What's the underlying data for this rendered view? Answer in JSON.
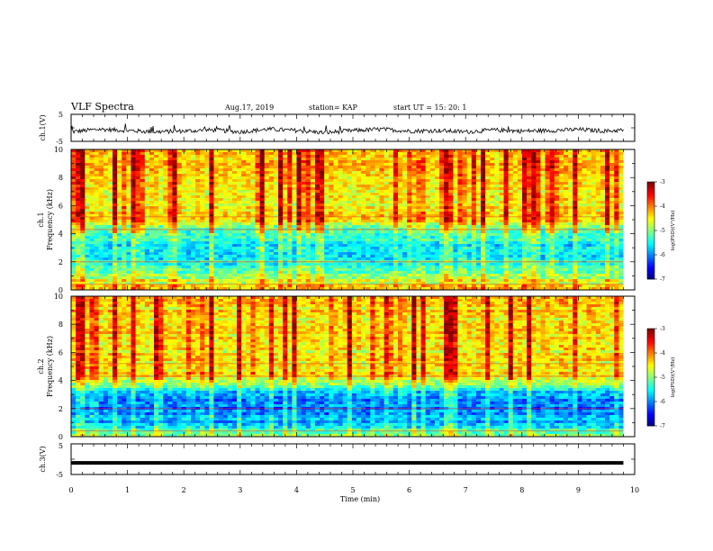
{
  "header": {
    "title": "VLF Spectra",
    "date": "Aug.17, 2019",
    "station": "station= KAP",
    "start": "start  UT =   15: 20: 1"
  },
  "chart_data": [
    {
      "type": "line",
      "ylabel": "ch.1(V)",
      "xlim": [
        0,
        10
      ],
      "ylim": [
        -5,
        5
      ],
      "yticks": [
        "5",
        "-5"
      ],
      "description_series": "noisy waveform around -1 V",
      "x": [
        0,
        0.5,
        1,
        1.5,
        2,
        2.5,
        3,
        3.5,
        4,
        4.5,
        5,
        5.5,
        6,
        6.5,
        7,
        7.5,
        8,
        8.5,
        9,
        9.5,
        9.8
      ],
      "y": [
        -1.5,
        -0.5,
        -1.0,
        -1.5,
        -1.2,
        -0.8,
        -1.5,
        -0.5,
        -1.0,
        -1.8,
        -1.0,
        -0.5,
        -1.2,
        -1.0,
        -1.5,
        -0.8,
        -1.2,
        -1.0,
        -0.6,
        -1.2,
        -0.8
      ],
      "color": "#000000"
    },
    {
      "type": "heatmap",
      "ylabel_line1": "ch.1",
      "ylabel_line2": "Frequency  (kHz)",
      "xlim": [
        0,
        9.8
      ],
      "ylim": [
        0,
        10
      ],
      "yticks": [
        "0",
        "2",
        "4",
        "6",
        "8",
        "10"
      ],
      "colorbar": {
        "label": "log(PSD)(V²/Hz)",
        "ticks": [
          "-3",
          "-4",
          "-5",
          "-6",
          "-7"
        ],
        "range": [
          -7,
          -3
        ]
      },
      "band_profile": [
        {
          "f": 0.0,
          "v": -4.2
        },
        {
          "f": 0.5,
          "v": -4.6
        },
        {
          "f": 1.0,
          "v": -5.0
        },
        {
          "f": 2.0,
          "v": -5.5
        },
        {
          "f": 3.0,
          "v": -5.6
        },
        {
          "f": 4.0,
          "v": -5.2
        },
        {
          "f": 5.0,
          "v": -4.4
        },
        {
          "f": 6.0,
          "v": -4.5
        },
        {
          "f": 8.0,
          "v": -4.4
        },
        {
          "f": 10.0,
          "v": -4.3
        }
      ]
    },
    {
      "type": "heatmap",
      "ylabel_line1": "ch.2",
      "ylabel_line2": "Frequency  (kHz)",
      "xlim": [
        0,
        9.8
      ],
      "ylim": [
        0,
        10
      ],
      "yticks": [
        "0",
        "2",
        "4",
        "6",
        "8",
        "10"
      ],
      "colorbar": {
        "label": "log(PSD)(V²/Hz)",
        "ticks": [
          "-3",
          "-4",
          "-5",
          "-6",
          "-7"
        ],
        "range": [
          -7,
          -3
        ]
      },
      "band_profile": [
        {
          "f": 0.0,
          "v": -4.8
        },
        {
          "f": 1.0,
          "v": -5.8
        },
        {
          "f": 2.0,
          "v": -6.1
        },
        {
          "f": 3.0,
          "v": -5.9
        },
        {
          "f": 3.6,
          "v": -5.1
        },
        {
          "f": 4.5,
          "v": -4.4
        },
        {
          "f": 6.0,
          "v": -4.5
        },
        {
          "f": 8.0,
          "v": -4.4
        },
        {
          "f": 10.0,
          "v": -4.3
        }
      ]
    },
    {
      "type": "line",
      "ylabel": "ch.3(V)",
      "xlabel": "Time  (min)",
      "xlim": [
        0,
        10
      ],
      "ylim": [
        -5,
        5
      ],
      "yticks": [
        "5",
        "-5"
      ],
      "xticks": [
        "0",
        "1",
        "2",
        "3",
        "4",
        "5",
        "6",
        "7",
        "8",
        "9",
        "10"
      ],
      "x": [
        0,
        9.8
      ],
      "y": [
        -1.2,
        -1.2
      ],
      "color": "#000000"
    }
  ]
}
